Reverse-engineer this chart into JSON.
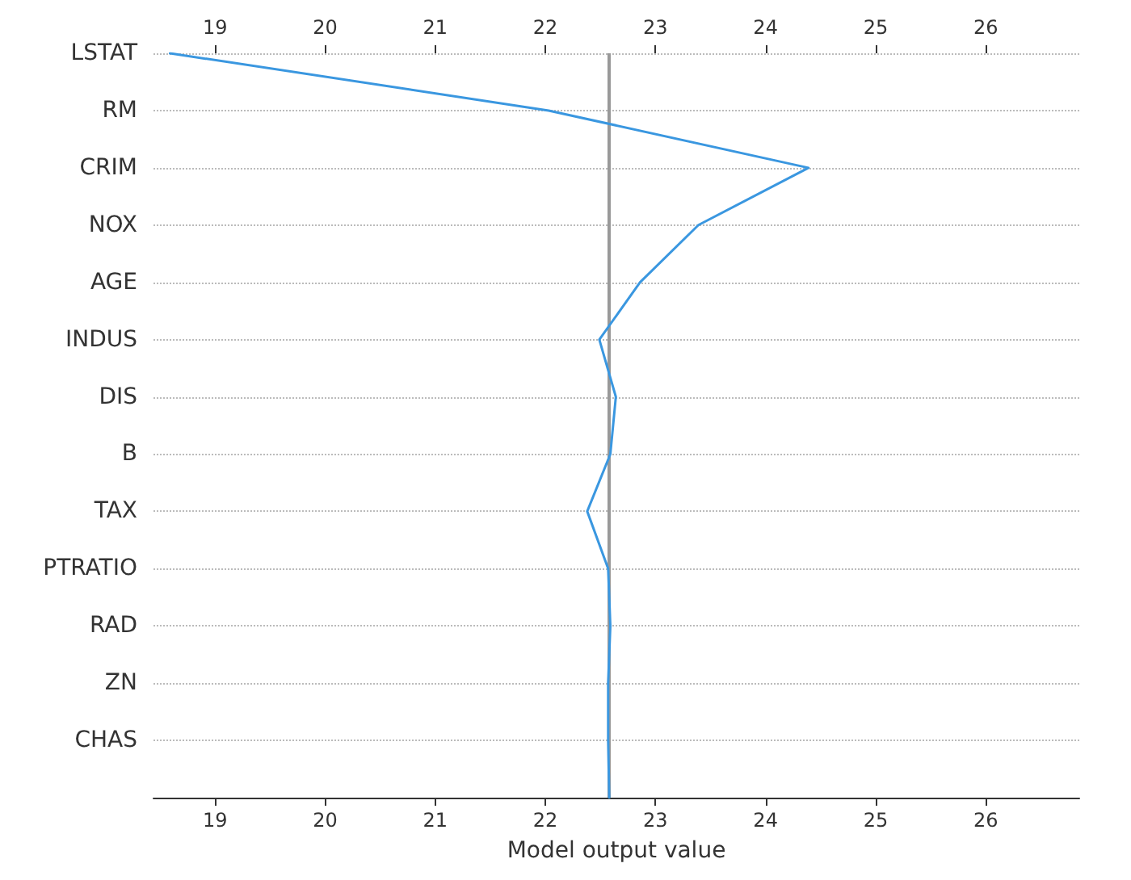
{
  "chart_data": {
    "type": "line",
    "orientation": "horizontal",
    "xlabel": "Model output value",
    "categories": [
      "LSTAT",
      "RM",
      "CRIM",
      "NOX",
      "AGE",
      "INDUS",
      "DIS",
      "B",
      "TAX",
      "PTRATIO",
      "RAD",
      "ZN",
      "CHAS",
      null
    ],
    "series": [
      {
        "color": "#3a97e0",
        "values": [
          18.59,
          22.03,
          24.39,
          23.39,
          22.86,
          22.49,
          22.64,
          22.59,
          22.38,
          22.57,
          22.59,
          22.57,
          22.57,
          22.58
        ]
      }
    ],
    "xlim": [
      18.44,
      26.85
    ],
    "xticks": [
      19,
      20,
      21,
      22,
      23,
      24,
      25,
      26
    ],
    "x2lim": [
      18.44,
      26.85
    ],
    "x2ticks": [
      19,
      20,
      21,
      22,
      23,
      24,
      25,
      26
    ],
    "ref_lines": [
      {
        "axis": "x",
        "value": 22.58,
        "label": null,
        "color": "#999999",
        "line_style": "solid"
      }
    ],
    "grid": "y",
    "legend": false,
    "marker": "none",
    "line_style": "solid"
  }
}
